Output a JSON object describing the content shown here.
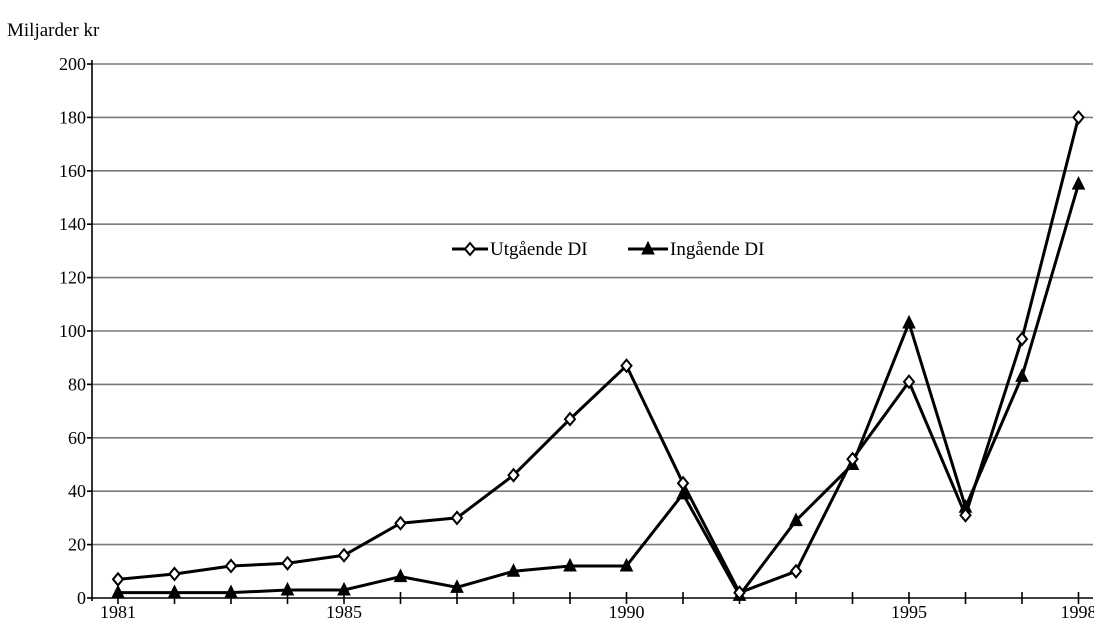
{
  "chart_data": {
    "type": "line",
    "ylabel": "Miljarder kr",
    "xlabel": "",
    "x": [
      1981,
      1982,
      1983,
      1984,
      1985,
      1986,
      1987,
      1988,
      1989,
      1990,
      1991,
      1992,
      1993,
      1994,
      1995,
      1996,
      1997,
      1998
    ],
    "x_tick_labels": [
      "1981",
      "1985",
      "1990",
      "1995",
      "1998"
    ],
    "y_tick_labels": [
      "0",
      "20",
      "40",
      "60",
      "80",
      "100",
      "120",
      "140",
      "160",
      "180",
      "200"
    ],
    "ylim": [
      0,
      200
    ],
    "grid": true,
    "legend_position": "center",
    "series": [
      {
        "name": "Utgående DI",
        "marker": "diamond-open",
        "color": "#000000",
        "values": [
          7,
          9,
          12,
          13,
          16,
          28,
          30,
          46,
          67,
          87,
          43,
          2,
          10,
          52,
          81,
          31,
          97,
          180
        ]
      },
      {
        "name": "Ingående DI",
        "marker": "triangle-filled",
        "color": "#000000",
        "values": [
          2,
          2,
          2,
          3,
          3,
          8,
          4,
          10,
          12,
          12,
          39,
          1,
          29,
          50,
          103,
          34,
          83,
          155
        ]
      }
    ]
  }
}
